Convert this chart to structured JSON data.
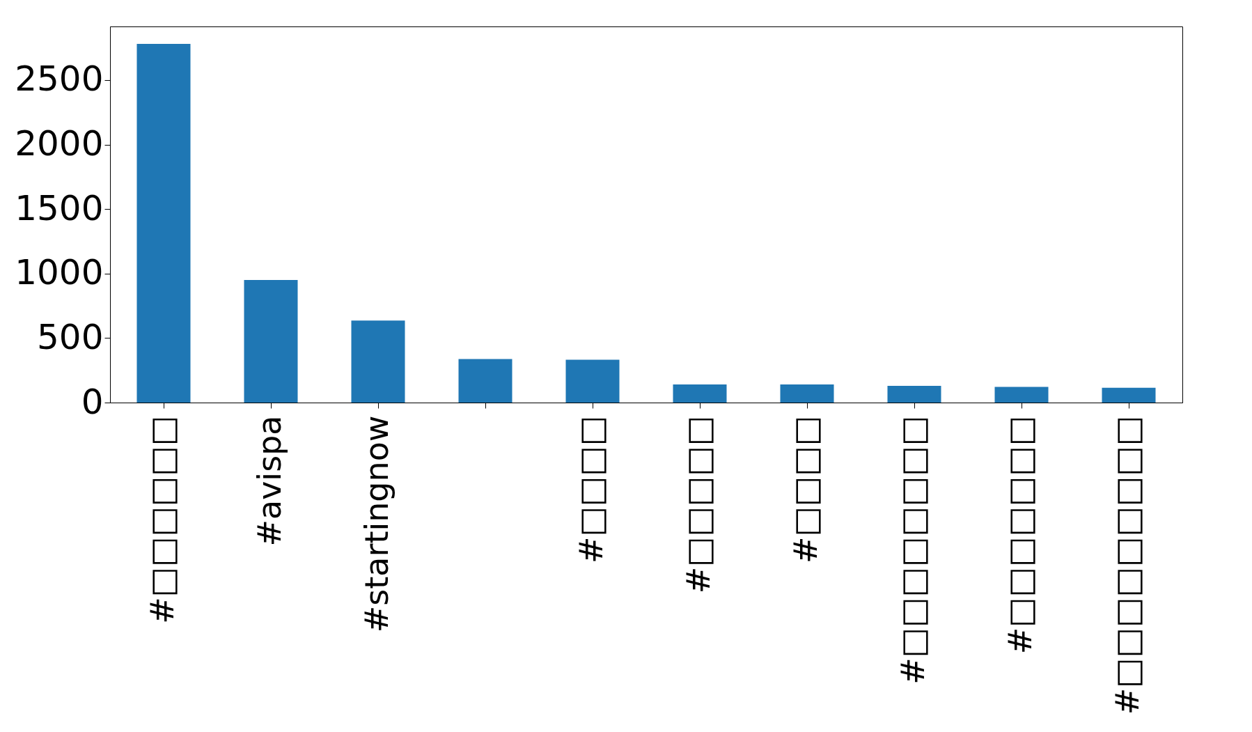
{
  "chart_data": {
    "type": "bar",
    "categories": [
      "#□□□□□□",
      "#avispa",
      "#startingnow",
      null,
      "#□□□□",
      "#□□□□□",
      "#□□□□",
      "#□□□□□□□□",
      "#□□□□□□□",
      "#□□□□□□□□□"
    ],
    "values": [
      2780,
      950,
      635,
      338,
      332,
      140,
      140,
      130,
      121,
      115
    ],
    "color": "#1f77b4",
    "ylim": [
      0,
      2915
    ],
    "yticks": [
      0,
      500,
      1000,
      1500,
      2000,
      2500
    ],
    "grid": false
  }
}
